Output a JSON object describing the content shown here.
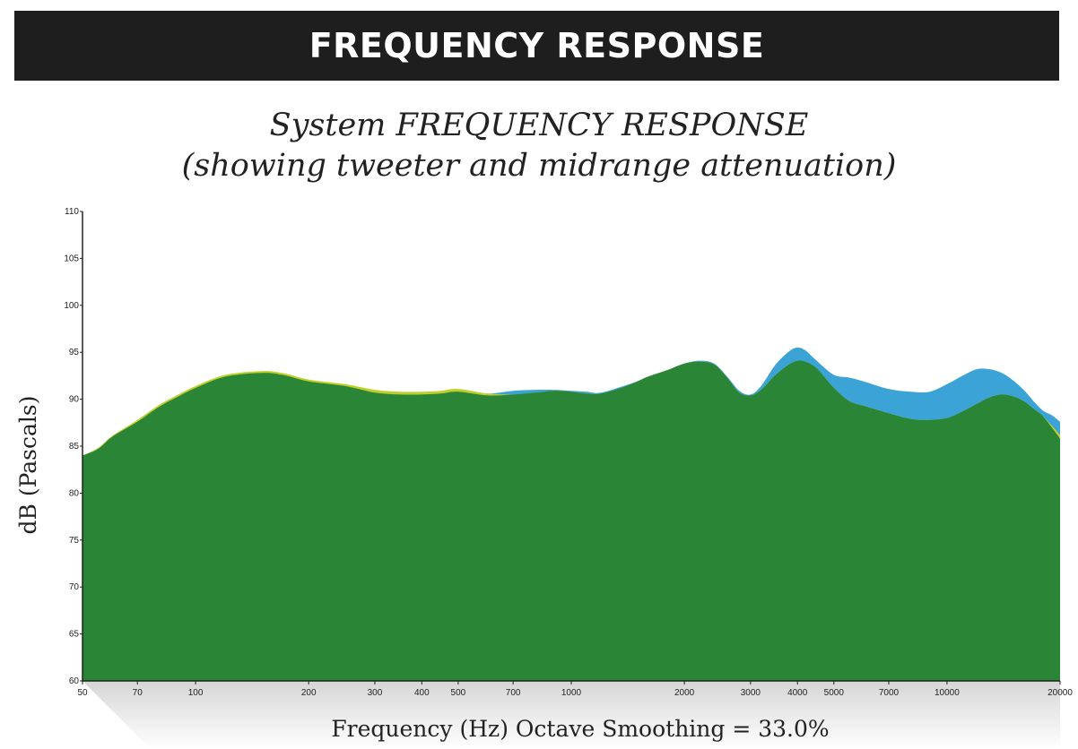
{
  "header": {
    "title": "FREQUENCY RESPONSE"
  },
  "chart_data": {
    "type": "area",
    "title_line1": "System FREQUENCY RESPONSE",
    "title_line2": "(showing tweeter and midrange attenuation)",
    "xlabel": "Frequency (Hz) Octave Smoothing = 33.0%",
    "ylabel": "dB (Pascals)",
    "x_scale": "log",
    "xlim": [
      50,
      20000
    ],
    "ylim": [
      60,
      110
    ],
    "x_ticks": [
      50,
      70,
      100,
      200,
      300,
      400,
      500,
      700,
      1000,
      2000,
      3000,
      4000,
      5000,
      7000,
      10000,
      20000
    ],
    "x_tick_labels": [
      "50",
      "70",
      "100",
      "200",
      "300",
      "400",
      "500",
      "700",
      "1000",
      "2000",
      "3000",
      "4000",
      "5000",
      "7000",
      "10000",
      "20000"
    ],
    "y_ticks": [
      60,
      65,
      70,
      75,
      80,
      85,
      90,
      95,
      100,
      105,
      110
    ],
    "y_tick_labels": [
      "60",
      "65",
      "70",
      "75",
      "80",
      "85",
      "90",
      "95",
      "100",
      "105",
      "110"
    ],
    "grid": false,
    "colors": {
      "blue": "#3ca3d6",
      "yellow": "#bfcf2a",
      "green": "#2b8537",
      "axis": "#222222"
    },
    "series": [
      {
        "color": "#3ca3d6",
        "x": [
          50,
          55,
          60,
          70,
          80,
          90,
          100,
          120,
          150,
          170,
          200,
          250,
          300,
          350,
          400,
          450,
          500,
          600,
          700,
          800,
          900,
          1000,
          1100,
          1200,
          1400,
          1600,
          1800,
          2000,
          2200,
          2400,
          2600,
          2800,
          3000,
          3200,
          3500,
          3800,
          4000,
          4200,
          4500,
          5000,
          5500,
          6000,
          7000,
          8000,
          9000,
          10000,
          11000,
          12000,
          13000,
          14000,
          15000,
          16000,
          17000,
          18000,
          19000,
          20000
        ],
        "y": [
          84,
          84.8,
          86,
          87.6,
          89.2,
          90.3,
          91.2,
          92.4,
          92.8,
          92.6,
          91.9,
          91.4,
          90.7,
          90.5,
          90.5,
          90.6,
          90.8,
          90.6,
          90.9,
          91.0,
          91.0,
          90.9,
          90.8,
          90.7,
          91.5,
          92.3,
          93.0,
          93.8,
          94.1,
          93.8,
          92.4,
          90.9,
          90.5,
          91.4,
          93.7,
          95.1,
          95.5,
          95.2,
          94.1,
          92.6,
          92.3,
          91.9,
          91.1,
          90.8,
          90.8,
          91.6,
          92.5,
          93.2,
          93.2,
          92.8,
          92.0,
          91.0,
          89.8,
          88.8,
          88.3,
          87.6
        ]
      },
      {
        "color": "#bfcf2a",
        "x": [
          50,
          55,
          60,
          70,
          80,
          90,
          100,
          120,
          150,
          170,
          200,
          250,
          300,
          350,
          400,
          450,
          500,
          600,
          700,
          800,
          900,
          1000,
          1100,
          1200,
          1400,
          1600,
          1800,
          2000,
          2200,
          2400,
          2600,
          2800,
          3000,
          3200,
          3500,
          3800,
          4000,
          4200,
          4500,
          5000,
          5500,
          6000,
          7000,
          8000,
          9000,
          10000,
          11000,
          12000,
          13000,
          14000,
          15000,
          16000,
          17000,
          18000,
          19000,
          20000
        ],
        "y": [
          84,
          84.8,
          86.1,
          87.8,
          89.4,
          90.5,
          91.4,
          92.6,
          93.0,
          92.8,
          92.1,
          91.6,
          91.0,
          90.8,
          90.8,
          90.9,
          91.1,
          90.6,
          90.5,
          90.7,
          90.9,
          90.8,
          90.6,
          90.6,
          91.4,
          92.4,
          93.1,
          93.8,
          94.0,
          93.7,
          92.3,
          90.7,
          90.4,
          91.0,
          92.6,
          93.7,
          94.1,
          94.0,
          93.3,
          91.2,
          89.8,
          89.3,
          88.5,
          87.9,
          87.8,
          88.0,
          88.7,
          89.5,
          90.2,
          90.5,
          90.3,
          89.8,
          89.0,
          88.2,
          87.2,
          86.2
        ]
      },
      {
        "color": "#2b8537",
        "x": [
          50,
          55,
          60,
          70,
          80,
          90,
          100,
          120,
          150,
          170,
          200,
          250,
          300,
          350,
          400,
          450,
          500,
          600,
          700,
          800,
          900,
          1000,
          1100,
          1200,
          1400,
          1600,
          1800,
          2000,
          2200,
          2400,
          2600,
          2800,
          3000,
          3200,
          3500,
          3800,
          4000,
          4200,
          4500,
          5000,
          5500,
          6000,
          7000,
          8000,
          9000,
          10000,
          11000,
          12000,
          13000,
          14000,
          15000,
          16000,
          17000,
          18000,
          19000,
          20000
        ],
        "y": [
          84,
          84.7,
          86,
          87.6,
          89.2,
          90.3,
          91.2,
          92.4,
          92.8,
          92.6,
          91.9,
          91.4,
          90.7,
          90.5,
          90.5,
          90.6,
          90.8,
          90.4,
          90.5,
          90.7,
          90.9,
          90.8,
          90.6,
          90.6,
          91.4,
          92.4,
          93.1,
          93.8,
          94.0,
          93.7,
          92.3,
          90.7,
          90.4,
          91.0,
          92.6,
          93.7,
          94.1,
          94.0,
          93.3,
          91.2,
          89.8,
          89.3,
          88.5,
          87.9,
          87.8,
          88.0,
          88.7,
          89.5,
          90.2,
          90.5,
          90.3,
          89.8,
          89.0,
          88.2,
          87.0,
          85.8
        ]
      }
    ]
  }
}
